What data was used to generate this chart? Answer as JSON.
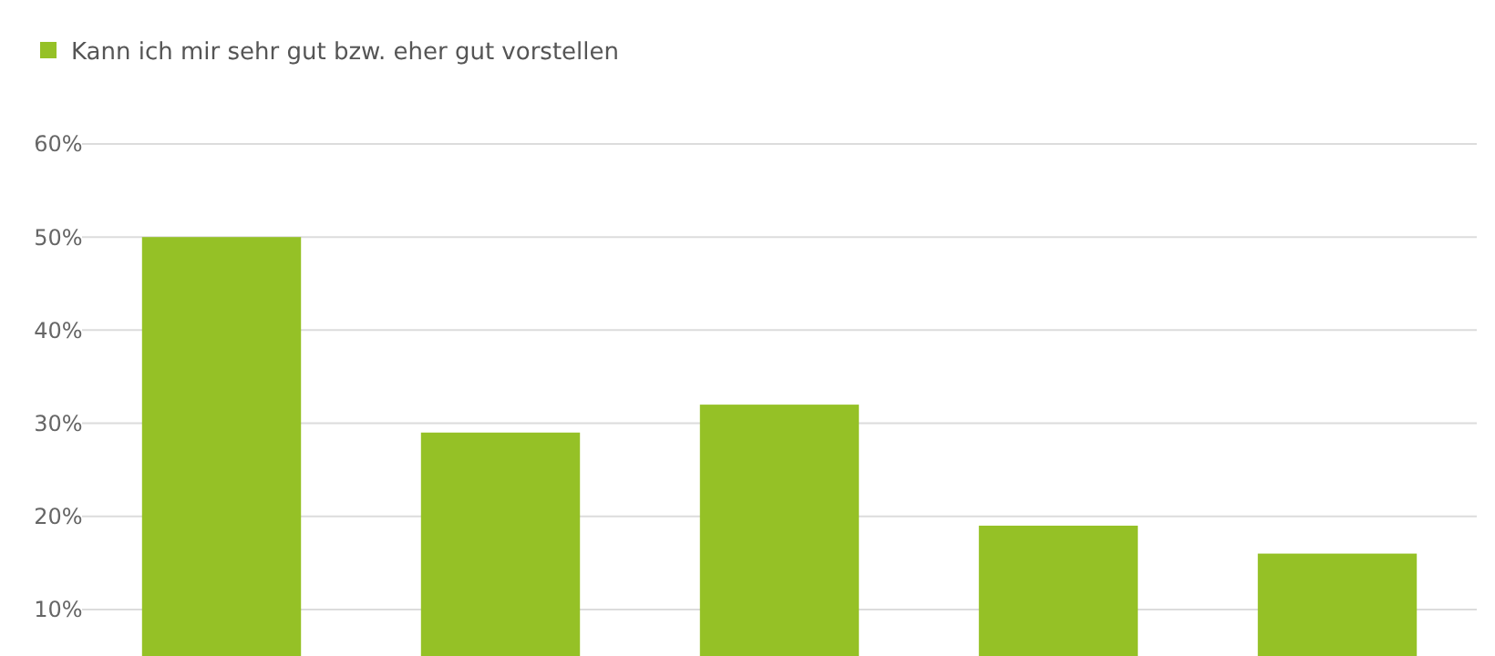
{
  "chart_data": {
    "type": "bar",
    "categories": [
      null,
      null,
      null,
      null,
      null
    ],
    "series": [
      {
        "name": "Kann ich mir sehr gut bzw. eher gut vorstellen",
        "color": "#95c126",
        "values": [
          50,
          29,
          32,
          19,
          16
        ]
      }
    ],
    "ylim": [
      5,
      60
    ],
    "yticks": [
      {
        "value": 10,
        "label": "10%"
      },
      {
        "value": 20,
        "label": "20%"
      },
      {
        "value": 30,
        "label": "30%"
      },
      {
        "value": 40,
        "label": "40%"
      },
      {
        "value": 50,
        "label": "50%"
      },
      {
        "value": 60,
        "label": "60%"
      }
    ],
    "grid": "y",
    "legend": "top left"
  }
}
